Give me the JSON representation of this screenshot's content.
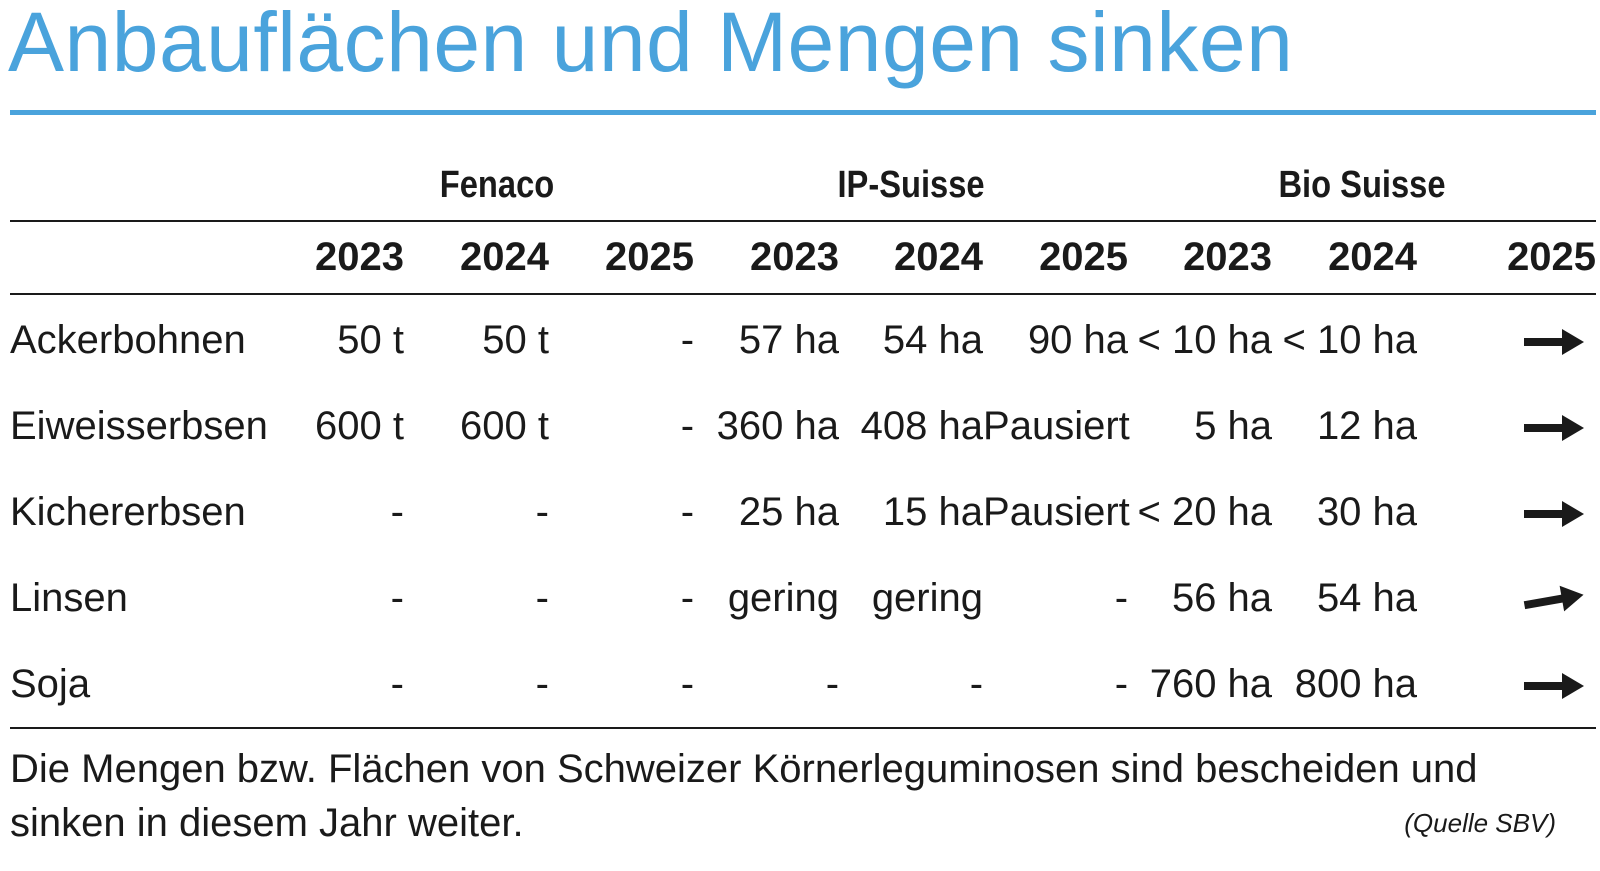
{
  "title": "Anbauflächen und Mengen sinken",
  "chart_data": {
    "type": "table",
    "groups": [
      "Fenaco",
      "IP-Suisse",
      "Bio Suisse"
    ],
    "years": [
      "2023",
      "2024",
      "2025"
    ],
    "rows": [
      {
        "crop": "Ackerbohnen",
        "values": [
          "50 t",
          "50 t",
          "-",
          "57 ha",
          "54 ha",
          "90 ha",
          "< 10 ha",
          "< 10 ha"
        ],
        "trend": "flat"
      },
      {
        "crop": "Eiweisserbsen",
        "values": [
          "600 t",
          "600 t",
          "-",
          "360 ha",
          "408 ha",
          "Pausiert",
          "5 ha",
          "12 ha"
        ],
        "trend": "flat"
      },
      {
        "crop": "Kichererbsen",
        "values": [
          "-",
          "-",
          "-",
          "25 ha",
          "15 ha",
          "Pausiert",
          "< 20 ha",
          "30 ha"
        ],
        "trend": "flat"
      },
      {
        "crop": "Linsen",
        "values": [
          "-",
          "-",
          "-",
          "gering",
          "gering",
          "-",
          "56 ha",
          "54 ha"
        ],
        "trend": "slightly-up"
      },
      {
        "crop": "Soja",
        "values": [
          "-",
          "-",
          "-",
          "-",
          "-",
          "-",
          "760 ha",
          "800 ha"
        ],
        "trend": "flat"
      }
    ]
  },
  "footnote": "Die Mengen bzw. Flächen von Schweizer Körnerleguminosen sind bescheiden und sinken in diesem Jahr weiter.",
  "source": "(Quelle SBV)",
  "colors": {
    "accent": "#4aa3dc",
    "text": "#1a1a1a"
  }
}
